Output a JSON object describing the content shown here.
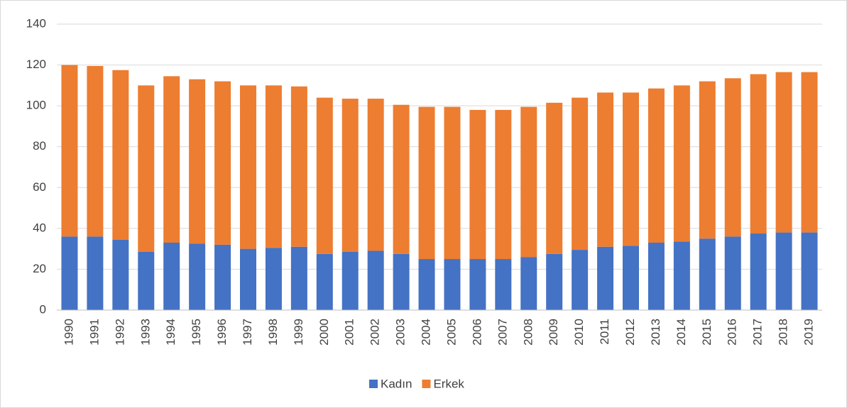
{
  "chart_data": {
    "type": "stacked_bar",
    "categories": [
      "1990",
      "1991",
      "1992",
      "1993",
      "1994",
      "1995",
      "1996",
      "1997",
      "1998",
      "1999",
      "2000",
      "2001",
      "2002",
      "2003",
      "2004",
      "2005",
      "2006",
      "2007",
      "2008",
      "2009",
      "2010",
      "2011",
      "2012",
      "2013",
      "2014",
      "2015",
      "2016",
      "2017",
      "2018",
      "2019"
    ],
    "series": [
      {
        "name": "Kadın",
        "color": "#4472c4",
        "values": [
          36,
          36,
          34.5,
          28.5,
          33,
          32.5,
          32,
          30,
          30.5,
          31,
          27.5,
          28.5,
          29,
          27.5,
          25,
          25,
          25,
          25,
          26,
          27.5,
          29.5,
          31,
          31.5,
          33,
          33.5,
          35,
          36,
          37.5,
          38,
          38
        ]
      },
      {
        "name": "Erkek",
        "color": "#ed7d31",
        "values": [
          84,
          83.5,
          83,
          81.5,
          81.5,
          80.5,
          80,
          80,
          79.5,
          78.5,
          76.5,
          75,
          74.5,
          73,
          74.5,
          74.5,
          73,
          73,
          73.5,
          74,
          74.5,
          75.5,
          75,
          75.5,
          76.5,
          77,
          77.5,
          78,
          78.5,
          78.5
        ]
      }
    ],
    "ylim": [
      0,
      140
    ],
    "yticks": [
      0,
      20,
      40,
      60,
      80,
      100,
      120,
      140
    ],
    "grid": true,
    "legend": "bottom"
  }
}
